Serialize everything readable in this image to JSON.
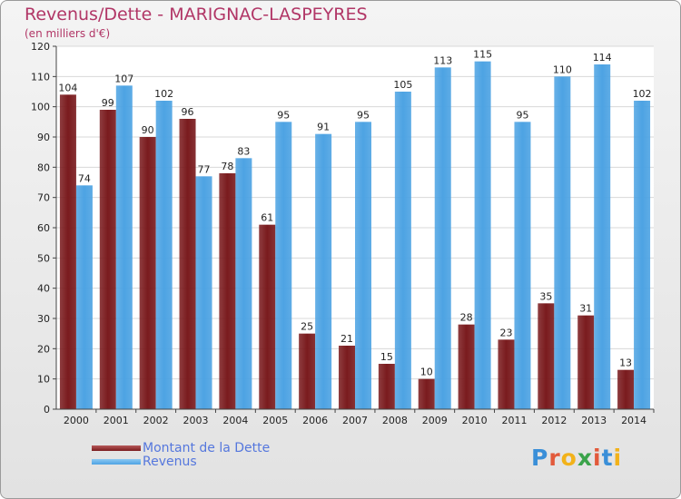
{
  "chart_data": {
    "type": "bar",
    "title": "Revenus/Dette - MARIGNAC-LASPEYRES",
    "unit_label": "(en milliers d'€)",
    "categories": [
      "2000",
      "2001",
      "2002",
      "2003",
      "2004",
      "2005",
      "2006",
      "2007",
      "2008",
      "2009",
      "2010",
      "2011",
      "2012",
      "2013",
      "2014"
    ],
    "series": [
      {
        "name": "Montant de la Dette",
        "color": "#7a1b1e",
        "values": [
          104,
          99,
          90,
          96,
          78,
          61,
          25,
          21,
          15,
          10,
          28,
          23,
          35,
          31,
          13
        ]
      },
      {
        "name": "Revenus",
        "color": "#4da3e3",
        "values": [
          74,
          107,
          102,
          77,
          83,
          95,
          91,
          95,
          105,
          113,
          115,
          95,
          110,
          114,
          102
        ]
      }
    ],
    "yticks": [
      0,
      10,
      20,
      30,
      40,
      50,
      60,
      70,
      80,
      90,
      100,
      110,
      120
    ],
    "ylim": [
      0,
      120
    ],
    "grid": true,
    "legend_position": "bottom-left"
  },
  "brand": {
    "letters": [
      "P",
      "r",
      "o",
      "x",
      "i",
      "t",
      "i"
    ],
    "colors": [
      "#3a8fd8",
      "#e25a3b",
      "#f2b21a",
      "#3aa34a",
      "#e25a3b",
      "#3a8fd8",
      "#f2b21a"
    ]
  }
}
